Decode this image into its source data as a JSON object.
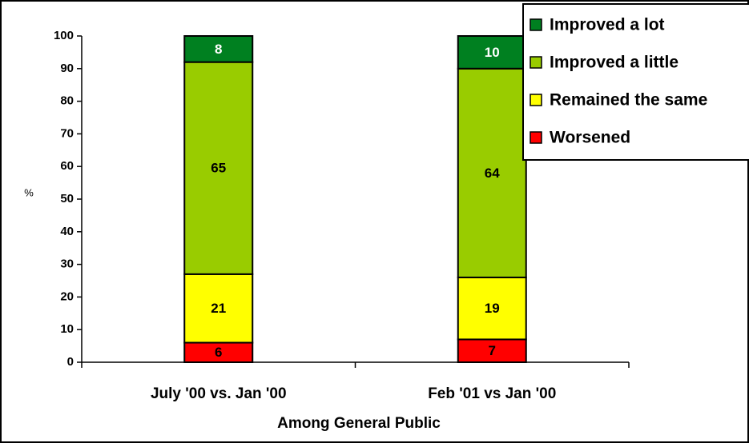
{
  "chart_data": {
    "type": "stacked_bar",
    "x_label": "Among General Public",
    "y_label": "%",
    "categories": [
      "July '00 vs. Jan '00",
      "Feb '01 vs Jan '00"
    ],
    "series": [
      {
        "name": "Worsened",
        "color": "#ff0000",
        "values": [
          6,
          7
        ]
      },
      {
        "name": "Remained the same",
        "color": "#ffff00",
        "values": [
          21,
          19
        ]
      },
      {
        "name": "Improved a little",
        "color": "#99cc00",
        "values": [
          65,
          64
        ]
      },
      {
        "name": "Improved a lot",
        "color": "#008020",
        "values": [
          8,
          10
        ]
      }
    ],
    "ylim": [
      0,
      100
    ],
    "yticks": [
      0,
      10,
      20,
      30,
      40,
      50,
      60,
      70,
      80,
      90,
      100
    ],
    "legend": "top-right"
  }
}
